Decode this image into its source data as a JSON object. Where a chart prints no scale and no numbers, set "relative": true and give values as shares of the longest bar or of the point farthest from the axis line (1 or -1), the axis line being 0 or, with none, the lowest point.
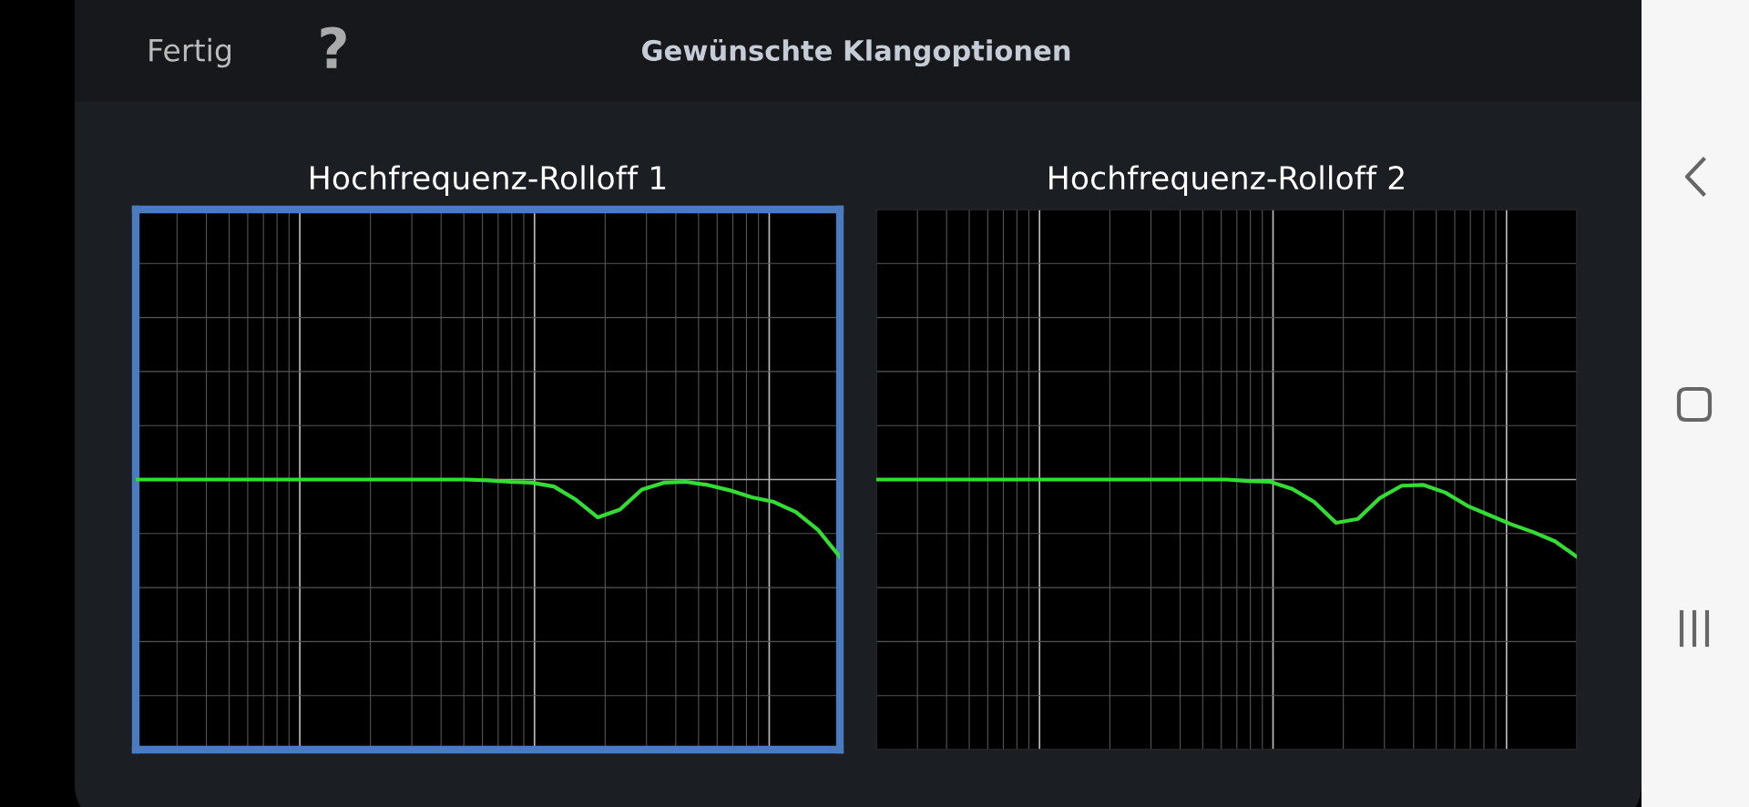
{
  "chart_data": [
    {
      "type": "line",
      "title": "Hochfrequenz-Rolloff 1",
      "relative": true,
      "grid": true,
      "marker": "none",
      "line_style": "solid",
      "annotations": [
        "Fertig",
        "?",
        "Gewünschte Klangoptionen"
      ],
      "categories": [
        null,
        null,
        null,
        null,
        null,
        null,
        null,
        null,
        null,
        null,
        null,
        null,
        null,
        null,
        null,
        null,
        null,
        null,
        null,
        null,
        null,
        null,
        null,
        null,
        null,
        null,
        null,
        null,
        null,
        null,
        null,
        null,
        null
      ],
      "series": [
        {
          "color": "#33dd33",
          "values": [
            0,
            0,
            0,
            0,
            0,
            0,
            0,
            0,
            0,
            0,
            0,
            0,
            0,
            0,
            0,
            0,
            -0.01,
            -0.03,
            -0.04,
            -0.09,
            -0.26,
            -0.49,
            -0.39,
            -0.13,
            -0.04,
            -0.03,
            -0.07,
            -0.14,
            -0.23,
            -0.29,
            -0.42,
            -0.65,
            -1
          ]
        }
      ]
    },
    {
      "type": "line",
      "title": "Hochfrequenz-Rolloff 2",
      "relative": true,
      "grid": true,
      "marker": "none",
      "line_style": "solid",
      "categories": [
        null,
        null,
        null,
        null,
        null,
        null,
        null,
        null,
        null,
        null,
        null,
        null,
        null,
        null,
        null,
        null,
        null,
        null,
        null,
        null,
        null,
        null,
        null,
        null,
        null,
        null,
        null,
        null,
        null,
        null,
        null,
        null,
        null
      ],
      "series": [
        {
          "color": "#33dd33",
          "values": [
            0,
            0,
            0,
            0,
            0,
            0,
            0,
            0,
            0,
            0,
            0,
            0,
            0,
            0,
            0,
            0,
            0,
            -0.02,
            -0.03,
            -0.12,
            -0.29,
            -0.56,
            -0.51,
            -0.24,
            -0.08,
            -0.07,
            -0.17,
            -0.34,
            -0.46,
            -0.58,
            -0.68,
            -0.8,
            -1
          ]
        }
      ]
    }
  ]
}
